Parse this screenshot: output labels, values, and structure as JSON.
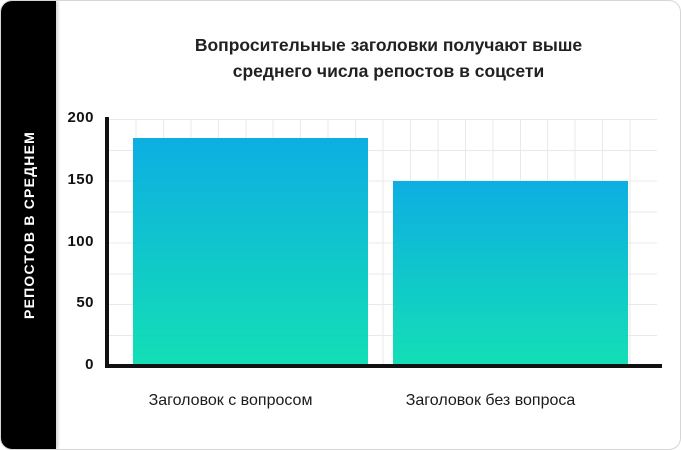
{
  "sidebar": {
    "ylabel": "РЕПОСТОВ В СРЕДНЕМ"
  },
  "title": {
    "line1": "Вопросительные заголовки получают выше",
    "line2": "среднего числа репостов в соцсети"
  },
  "chart_data": {
    "type": "bar",
    "title": "Вопросительные заголовки получают выше среднего числа репостов в соцсети",
    "categories": [
      "Заголовок с вопросом",
      "Заголовок без вопроса"
    ],
    "values": [
      185,
      150
    ],
    "xlabel": "",
    "ylabel": "РЕПОСТОВ В СРЕДНЕМ",
    "ylim": [
      0,
      200
    ],
    "yticks": [
      0,
      50,
      100,
      150,
      200
    ],
    "grid": true,
    "legend": false,
    "bar_gradient_top": "#0daee2",
    "bar_gradient_bottom": "#13dfb5"
  },
  "colors": {
    "sidebar_bg": "#000000",
    "sidebar_text": "#ffffff",
    "axis": "#111111",
    "grid_line": "#e9e9e9",
    "title_text": "#212121",
    "card_border": "#d6d6d6"
  }
}
